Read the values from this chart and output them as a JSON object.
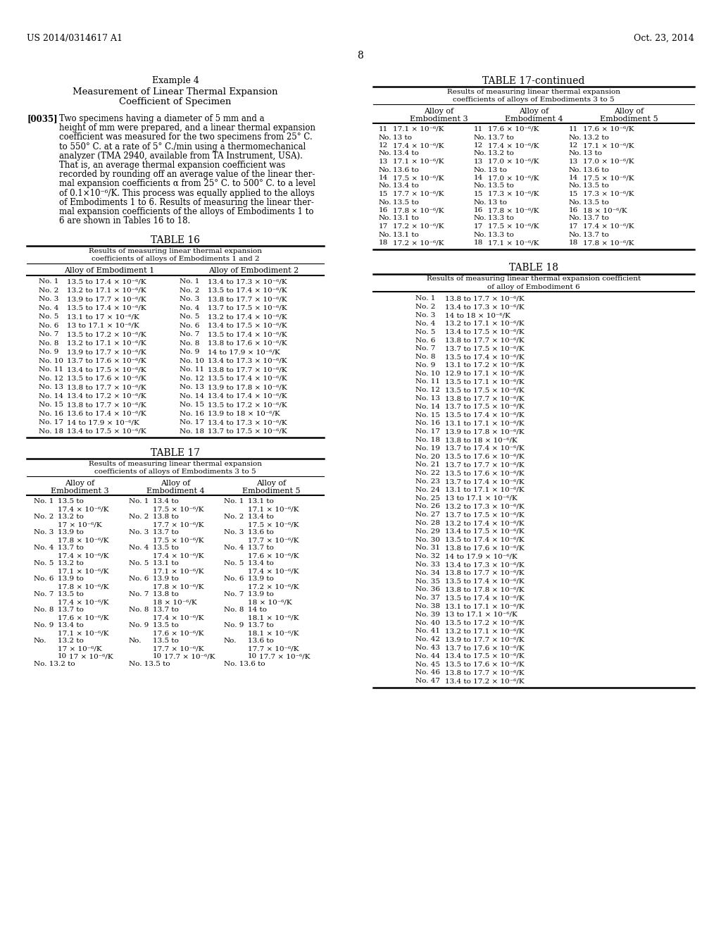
{
  "page_header_left": "US 2014/0314617 A1",
  "page_header_right": "Oct. 23, 2014",
  "page_number": "8",
  "bg_color": "#ffffff"
}
